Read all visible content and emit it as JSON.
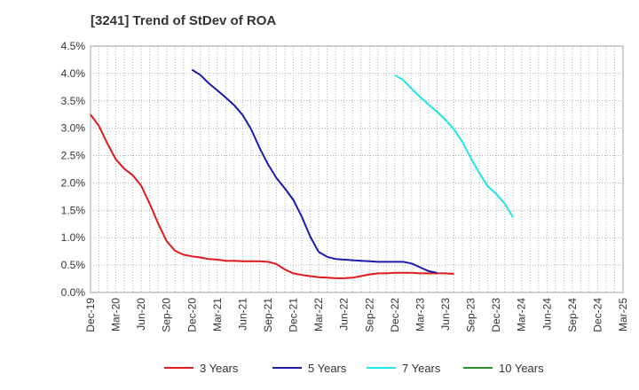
{
  "chart_data": {
    "type": "line",
    "title": "[3241]  Trend of StDev of ROA",
    "xlabel": "",
    "ylabel": "",
    "x_labels": [
      "Dec-19",
      "Mar-20",
      "Jun-20",
      "Sep-20",
      "Dec-20",
      "Mar-21",
      "Jun-21",
      "Sep-21",
      "Dec-21",
      "Mar-22",
      "Jun-22",
      "Sep-22",
      "Dec-22",
      "Mar-23",
      "Jun-23",
      "Sep-23",
      "Dec-23",
      "Mar-24",
      "Jun-24",
      "Sep-24",
      "Dec-24",
      "Mar-25"
    ],
    "y_ticks": [
      "0.0%",
      "0.5%",
      "1.0%",
      "1.5%",
      "2.0%",
      "2.5%",
      "3.0%",
      "3.5%",
      "4.0%",
      "4.5%"
    ],
    "ylim": [
      0,
      4.5
    ],
    "grid": true,
    "legend_position": "bottom",
    "series": [
      {
        "name": "3 Years",
        "color": "#e0191d",
        "start_index": 0,
        "values": [
          3.25,
          3.04,
          2.72,
          2.43,
          2.26,
          2.14,
          1.95,
          1.62,
          1.26,
          0.94,
          0.76,
          0.69,
          0.66,
          0.64,
          0.61,
          0.6,
          0.58,
          0.58,
          0.57,
          0.57,
          0.57,
          0.56,
          0.52,
          0.42,
          0.35,
          0.32,
          0.3,
          0.28,
          0.27,
          0.26,
          0.26,
          0.27,
          0.3,
          0.33,
          0.35,
          0.35,
          0.36,
          0.36,
          0.36,
          0.35,
          0.35,
          0.35,
          0.35,
          0.34
        ]
      },
      {
        "name": "5 Years",
        "color": "#1a1aad",
        "start_index": 12,
        "values": [
          4.07,
          3.97,
          3.82,
          3.69,
          3.56,
          3.42,
          3.24,
          2.98,
          2.64,
          2.34,
          2.09,
          1.9,
          1.69,
          1.38,
          1.02,
          0.74,
          0.65,
          0.61,
          0.6,
          0.59,
          0.58,
          0.57,
          0.56,
          0.56,
          0.56,
          0.56,
          0.53,
          0.46,
          0.39,
          0.36
        ]
      },
      {
        "name": "7 Years",
        "color": "#1ee6e6",
        "start_index": 36,
        "values": [
          3.97,
          3.88,
          3.72,
          3.57,
          3.43,
          3.3,
          3.15,
          2.98,
          2.75,
          2.45,
          2.18,
          1.94,
          1.8,
          1.62,
          1.37
        ]
      },
      {
        "name": "10 Years",
        "color": "#2e8b2e",
        "start_index": 0,
        "values": []
      }
    ]
  }
}
